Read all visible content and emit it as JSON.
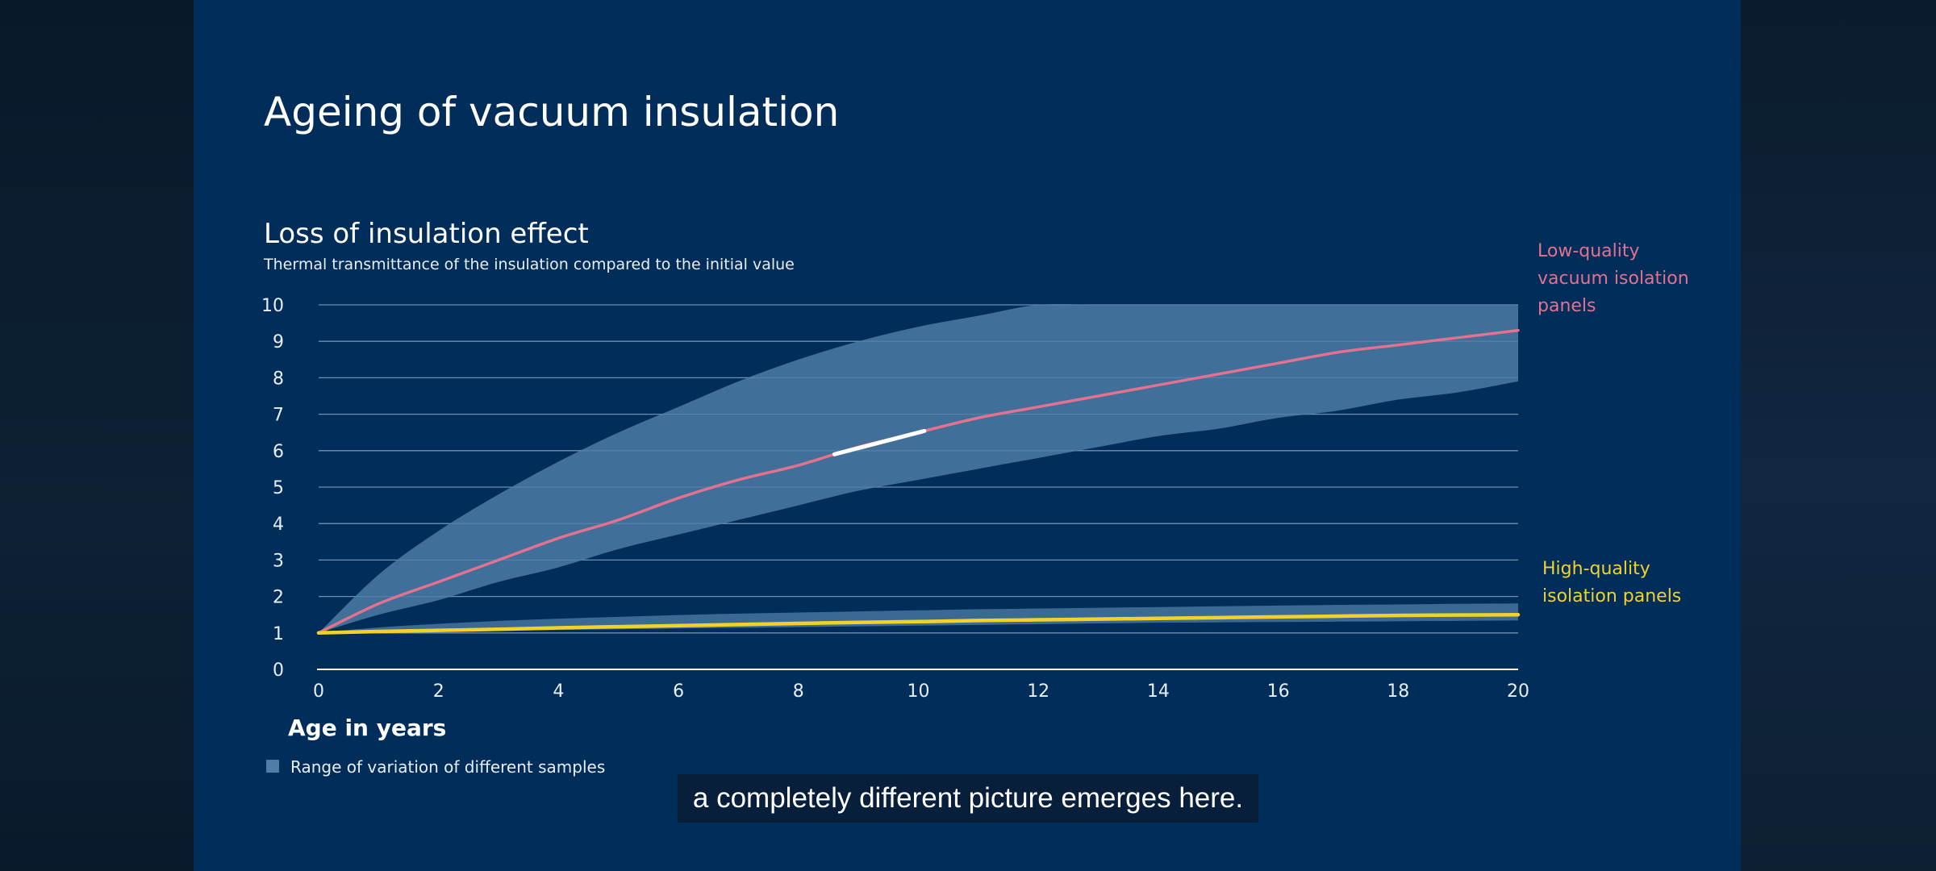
{
  "colors": {
    "frame_bg": "#012d5a",
    "band": "#4e7ea7",
    "low_quality": "#e4718f",
    "high_quality": "#f2d22a",
    "highlight": "#ffffff",
    "grid": "#6d90b3",
    "text": "#e8eef5"
  },
  "slide": {
    "title": "Ageing of vacuum insulation",
    "legend_swatch_label": "Range of variation of different samples",
    "subtitle": "a completely different picture emerges here."
  },
  "chart_data": {
    "type": "line",
    "title": "Loss of insulation effect",
    "subtitle": "Thermal transmittance of the insulation compared to the initial value",
    "xlabel": "Age in years",
    "ylabel": "",
    "xlim": [
      0,
      20
    ],
    "ylim": [
      0,
      10
    ],
    "x_ticks": [
      0,
      2,
      4,
      6,
      8,
      10,
      12,
      14,
      16,
      18,
      20
    ],
    "y_ticks": [
      0,
      1,
      2,
      3,
      4,
      5,
      6,
      7,
      8,
      9,
      10
    ],
    "grid": true,
    "x": [
      0,
      1,
      2,
      3,
      4,
      5,
      6,
      7,
      8,
      9,
      10,
      11,
      12,
      13,
      14,
      15,
      16,
      17,
      18,
      19,
      20
    ],
    "series": [
      {
        "name": "Low-quality vacuum isolation panels",
        "color": "#e4718f",
        "values": [
          1.0,
          1.8,
          2.4,
          3.0,
          3.6,
          4.1,
          4.7,
          5.2,
          5.6,
          6.1,
          6.5,
          6.9,
          7.2,
          7.5,
          7.8,
          8.1,
          8.4,
          8.7,
          8.9,
          9.1,
          9.3
        ],
        "band_upper": [
          1.0,
          2.6,
          3.8,
          4.8,
          5.7,
          6.5,
          7.2,
          7.9,
          8.5,
          9.0,
          9.4,
          9.7,
          10.0,
          10.0,
          10.0,
          10.0,
          10.0,
          10.0,
          10.0,
          10.0,
          10.0
        ],
        "band_lower": [
          1.0,
          1.5,
          1.9,
          2.4,
          2.8,
          3.3,
          3.7,
          4.1,
          4.5,
          4.9,
          5.2,
          5.5,
          5.8,
          6.1,
          6.4,
          6.6,
          6.9,
          7.1,
          7.4,
          7.6,
          7.9
        ],
        "highlight_range": [
          8.6,
          10.1
        ]
      },
      {
        "name": "High-quality isolation panels",
        "color": "#f2d22a",
        "values": [
          1.0,
          1.04,
          1.07,
          1.1,
          1.14,
          1.17,
          1.2,
          1.23,
          1.26,
          1.29,
          1.31,
          1.34,
          1.36,
          1.38,
          1.4,
          1.42,
          1.44,
          1.46,
          1.48,
          1.49,
          1.5
        ],
        "band_upper": [
          1.0,
          1.15,
          1.25,
          1.33,
          1.39,
          1.44,
          1.49,
          1.53,
          1.56,
          1.59,
          1.62,
          1.65,
          1.67,
          1.69,
          1.71,
          1.73,
          1.75,
          1.77,
          1.78,
          1.8,
          1.81
        ],
        "band_lower": [
          1.0,
          1.02,
          1.04,
          1.06,
          1.08,
          1.1,
          1.12,
          1.14,
          1.16,
          1.18,
          1.2,
          1.22,
          1.24,
          1.26,
          1.28,
          1.29,
          1.3,
          1.31,
          1.32,
          1.33,
          1.34
        ]
      }
    ]
  }
}
